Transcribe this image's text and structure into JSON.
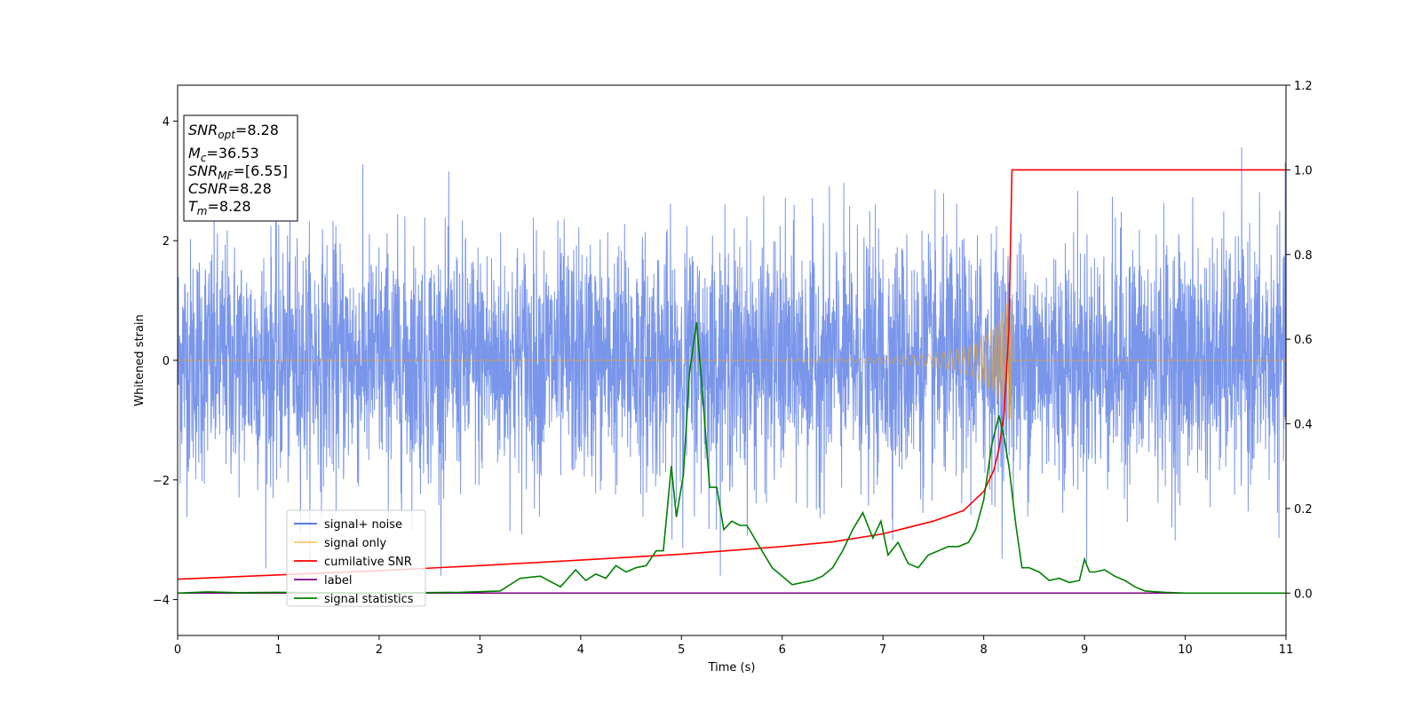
{
  "chart_data": {
    "type": "line",
    "xlabel": "Time (s)",
    "ylabel": "Whitened strain",
    "xlim": [
      0,
      11
    ],
    "ylim_left": [
      -4.6,
      4.6
    ],
    "ylim_right": [
      -0.1,
      1.2
    ],
    "x_ticks": [
      0,
      1,
      2,
      3,
      4,
      5,
      6,
      7,
      8,
      9,
      10,
      11
    ],
    "y_ticks_left": [
      -4,
      -2,
      0,
      2,
      4
    ],
    "y_ticks_left_labels": [
      "−4",
      "−2",
      "0",
      "2",
      "4"
    ],
    "y_ticks_right": [
      0.0,
      0.2,
      0.4,
      0.6,
      0.8,
      1.0,
      1.2
    ],
    "y_ticks_right_labels": [
      "0.0",
      "0.2",
      "0.4",
      "0.6",
      "0.8",
      "1.0",
      "1.2"
    ],
    "info_box": {
      "snr_opt": {
        "name": "SNR",
        "sub": "opt",
        "value": "=8.28"
      },
      "mc": {
        "name": "M",
        "sub": "c",
        "value": "=36.53"
      },
      "snr_mf": {
        "name": "SNR",
        "sub": "MF",
        "value": "=[6.55]"
      },
      "csnr": {
        "name": "CSNR",
        "value": "=8.28"
      },
      "tm": {
        "name": "T",
        "sub": "m",
        "value": "=8.28"
      }
    },
    "legend": {
      "placement": "lower-left",
      "entries": [
        {
          "label": "signal+ noise",
          "color": "#4169e1"
        },
        {
          "label": "signal only",
          "color": "#ffa500"
        },
        {
          "label": "cumilative SNR",
          "color": "#ff0000"
        },
        {
          "label": "label",
          "color": "#800080"
        },
        {
          "label": "signal statistics",
          "color": "#008000"
        }
      ]
    },
    "series": [
      {
        "name": "signal+ noise",
        "axis": "left",
        "color": "#4169e1",
        "noise_band_approx": [
          -2.5,
          2.5
        ],
        "peak_extremes_approx": [
          -3.6,
          4.2
        ]
      },
      {
        "name": "signal only",
        "axis": "left",
        "color": "#ffa500",
        "chirp_peak_time": 8.28,
        "chirp_peak_amplitude_approx": 1.0
      },
      {
        "name": "cumilative SNR",
        "axis": "right",
        "color": "#ff0000",
        "x": [
          0,
          1,
          2,
          3,
          4,
          5,
          6,
          6.5,
          7,
          7.5,
          7.8,
          8.0,
          8.1,
          8.15,
          8.2,
          8.25,
          8.28,
          8.3,
          11
        ],
        "y": [
          0.033,
          0.043,
          0.053,
          0.065,
          0.078,
          0.092,
          0.11,
          0.121,
          0.14,
          0.17,
          0.195,
          0.24,
          0.29,
          0.34,
          0.42,
          0.62,
          1.0,
          1.0,
          1.0
        ]
      },
      {
        "name": "label",
        "axis": "right",
        "color": "#800080",
        "x": [
          0,
          11
        ],
        "y": [
          0,
          0
        ]
      },
      {
        "name": "signal statistics",
        "axis": "right",
        "color": "#008000",
        "x": [
          0,
          0.3,
          0.6,
          1.0,
          2.0,
          2.8,
          3.2,
          3.4,
          3.6,
          3.8,
          3.95,
          4.05,
          4.15,
          4.25,
          4.35,
          4.45,
          4.55,
          4.65,
          4.75,
          4.82,
          4.9,
          4.95,
          5.02,
          5.08,
          5.15,
          5.2,
          5.28,
          5.35,
          5.42,
          5.5,
          5.58,
          5.65,
          5.8,
          5.9,
          6.0,
          6.1,
          6.2,
          6.3,
          6.4,
          6.5,
          6.6,
          6.7,
          6.8,
          6.9,
          6.98,
          7.05,
          7.15,
          7.25,
          7.35,
          7.45,
          7.55,
          7.65,
          7.75,
          7.85,
          7.92,
          8.0,
          8.08,
          8.15,
          8.2,
          8.25,
          8.32,
          8.38,
          8.45,
          8.55,
          8.65,
          8.75,
          8.85,
          8.95,
          9.0,
          9.05,
          9.1,
          9.2,
          9.3,
          9.4,
          9.5,
          9.6,
          9.8,
          10.0,
          11.0
        ],
        "y": [
          0.0,
          0.003,
          0.001,
          0.002,
          0.0,
          0.002,
          0.005,
          0.035,
          0.04,
          0.015,
          0.055,
          0.03,
          0.045,
          0.035,
          0.065,
          0.05,
          0.06,
          0.065,
          0.1,
          0.1,
          0.3,
          0.18,
          0.28,
          0.52,
          0.64,
          0.5,
          0.25,
          0.25,
          0.15,
          0.17,
          0.16,
          0.16,
          0.1,
          0.06,
          0.04,
          0.02,
          0.025,
          0.03,
          0.04,
          0.06,
          0.1,
          0.15,
          0.19,
          0.13,
          0.17,
          0.09,
          0.12,
          0.07,
          0.06,
          0.09,
          0.1,
          0.11,
          0.11,
          0.12,
          0.15,
          0.22,
          0.35,
          0.42,
          0.37,
          0.3,
          0.16,
          0.06,
          0.06,
          0.05,
          0.03,
          0.035,
          0.025,
          0.03,
          0.08,
          0.05,
          0.05,
          0.055,
          0.04,
          0.03,
          0.015,
          0.005,
          0.002,
          0.0,
          0.0
        ]
      }
    ]
  }
}
